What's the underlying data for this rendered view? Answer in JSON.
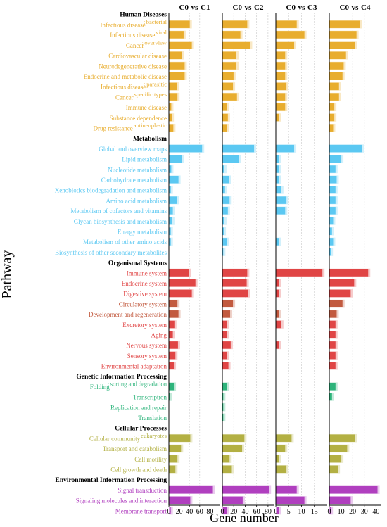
{
  "chart_data": {
    "type": "bar",
    "orientation": "horizontal",
    "ylabel": "Pathway",
    "xlabel": "Gene number",
    "grid": true,
    "colors": {
      "Human Diseases": "#e8ad2e",
      "Metabolism": "#5bc8f2",
      "Organismal Systems": "#e04545",
      "Organismal Systems (dark)": "#c25a3f",
      "Genetic Information Processing": "#2db47b",
      "Cellular Processes": "#b3b043",
      "Environmental Information Processing": "#b03fbf"
    },
    "panels": [
      {
        "title": "C0-vs-C1",
        "xlim": [
          0,
          100
        ],
        "ticks": [
          0,
          20,
          40,
          60,
          80
        ]
      },
      {
        "title": "C0-vs-C2",
        "xlim": [
          0,
          90
        ],
        "ticks": [
          0,
          20,
          40,
          60,
          80
        ]
      },
      {
        "title": "C0-vs-C3",
        "xlim": [
          0,
          20
        ],
        "ticks": [
          0,
          5,
          10,
          15
        ]
      },
      {
        "title": "C0-vs-C4",
        "xlim": [
          0,
          44
        ],
        "ticks": [
          0,
          10,
          20,
          30,
          40
        ]
      }
    ],
    "rows": [
      {
        "kind": "group",
        "label": "Human Diseases"
      },
      {
        "kind": "bar",
        "label": "Infectious disease",
        "sup": "bacterial",
        "cat": "Human Diseases",
        "values": [
          40,
          43,
          8,
          26
        ]
      },
      {
        "kind": "bar",
        "label": "Infectious disease",
        "sup": "viral",
        "cat": "Human Diseases",
        "values": [
          28,
          31,
          11,
          23
        ]
      },
      {
        "kind": "bar",
        "label": "Cancer",
        "sup": "overview",
        "cat": "Human Diseases",
        "values": [
          44,
          48,
          7,
          22
        ]
      },
      {
        "kind": "bar",
        "label": "Cardiovascular disease",
        "cat": "Human Diseases",
        "values": [
          25,
          24,
          3.5,
          14
        ]
      },
      {
        "kind": "bar",
        "label": "Neurodegenerative disease",
        "cat": "Human Diseases",
        "values": [
          30,
          24,
          3.5,
          12
        ]
      },
      {
        "kind": "bar",
        "label": "Endocrine and metabolic disease",
        "cat": "Human Diseases",
        "values": [
          30,
          19,
          3.5,
          11
        ]
      },
      {
        "kind": "bar",
        "label": "Infectious disease",
        "sup": "parasitic",
        "cat": "Human Diseases",
        "values": [
          15,
          18,
          4,
          8
        ]
      },
      {
        "kind": "bar",
        "label": "Cancer",
        "sup": "specific types",
        "cat": "Human Diseases",
        "values": [
          16,
          25,
          3.5,
          8
        ]
      },
      {
        "kind": "bar",
        "label": "Immune disease",
        "cat": "Human Diseases",
        "values": [
          4,
          7,
          3.5,
          4
        ]
      },
      {
        "kind": "bar",
        "label": "Substance dependence",
        "cat": "Human Diseases",
        "values": [
          5,
          9,
          1,
          4
        ]
      },
      {
        "kind": "bar",
        "label": "Drug resistance",
        "sup": "antineoplastic",
        "cat": "Human Diseases",
        "values": [
          8,
          7,
          0,
          3
        ]
      },
      {
        "kind": "group",
        "label": "Metabolism"
      },
      {
        "kind": "bar",
        "label": "Global and overview maps",
        "cat": "Metabolism",
        "values": [
          64,
          55,
          7,
          28
        ]
      },
      {
        "kind": "bar",
        "label": "Lipid metabolism",
        "cat": "Metabolism",
        "values": [
          24,
          28,
          1,
          10
        ]
      },
      {
        "kind": "bar",
        "label": "Nucleotide metabolism",
        "cat": "Metabolism",
        "values": [
          4,
          3,
          1,
          5
        ]
      },
      {
        "kind": "bar",
        "label": "Carbohydrate metabolism",
        "cat": "Metabolism",
        "values": [
          18,
          11,
          1,
          6
        ]
      },
      {
        "kind": "bar",
        "label": "Xenobiotics biodegradation and metabolism",
        "cat": "Metabolism",
        "values": [
          3,
          4,
          2,
          5
        ]
      },
      {
        "kind": "bar",
        "label": "Amino acid metabolism",
        "cat": "Metabolism",
        "values": [
          15,
          12,
          4,
          5
        ]
      },
      {
        "kind": "bar",
        "label": "Metabolism of cofactors and vitamins",
        "cat": "Metabolism",
        "values": [
          7,
          9,
          3.5,
          5
        ]
      },
      {
        "kind": "bar",
        "label": "Glycan biosynthesis and metabolism",
        "cat": "Metabolism",
        "values": [
          6,
          3,
          0,
          3
        ]
      },
      {
        "kind": "bar",
        "label": "Energy metabolism",
        "cat": "Metabolism",
        "values": [
          3,
          2,
          0,
          2
        ]
      },
      {
        "kind": "bar",
        "label": "Metabolism of other amino acids",
        "cat": "Metabolism",
        "values": [
          3,
          7,
          1,
          3
        ]
      },
      {
        "kind": "bar",
        "label": "Biosynthesis of other secondary metabolites",
        "cat": "Metabolism",
        "values": [
          0,
          1,
          0,
          1
        ]
      },
      {
        "kind": "group",
        "label": "Organismal Systems"
      },
      {
        "kind": "bar",
        "label": "Immune system",
        "cat": "Organismal Systems",
        "values": [
          38,
          43,
          18,
          33
        ]
      },
      {
        "kind": "bar",
        "label": "Endocrine system",
        "cat": "Organismal Systems",
        "values": [
          51,
          42,
          1,
          21
        ]
      },
      {
        "kind": "bar",
        "label": "Digestive system",
        "cat": "Organismal Systems",
        "values": [
          44,
          44,
          1,
          18
        ]
      },
      {
        "kind": "bar",
        "label": "Circulatory system",
        "cat": "Organismal Systems (dark)",
        "values": [
          16,
          18,
          0,
          11
        ]
      },
      {
        "kind": "bar",
        "label": "Development and regeneration",
        "cat": "Organismal Systems (dark)",
        "values": [
          18,
          13,
          1,
          6
        ]
      },
      {
        "kind": "bar",
        "label": "Excretory system",
        "cat": "Organismal Systems",
        "values": [
          10,
          7,
          2,
          5
        ]
      },
      {
        "kind": "bar",
        "label": "Aging",
        "cat": "Organismal Systems",
        "values": [
          7,
          7,
          0,
          5
        ]
      },
      {
        "kind": "bar",
        "label": "Nervous system",
        "cat": "Organismal Systems",
        "values": [
          17,
          14,
          1,
          5
        ]
      },
      {
        "kind": "bar",
        "label": "Sensory system",
        "cat": "Organismal Systems",
        "values": [
          12,
          7,
          0,
          5
        ]
      },
      {
        "kind": "bar",
        "label": "Environmental adaptation",
        "cat": "Organismal Systems",
        "values": [
          9,
          10,
          0,
          5
        ]
      },
      {
        "kind": "group",
        "label": "Genetic Information Processing"
      },
      {
        "kind": "bar",
        "label": "Folding",
        "sup": "sorting and degradation",
        "cat": "Genetic Information Processing",
        "values": [
          9,
          7,
          0,
          5
        ]
      },
      {
        "kind": "bar",
        "label": "Transcription",
        "cat": "Genetic Information Processing",
        "values": [
          2,
          1,
          0,
          2
        ]
      },
      {
        "kind": "bar",
        "label": "Replication and repair",
        "cat": "Genetic Information Processing",
        "values": [
          0,
          1,
          0,
          0
        ]
      },
      {
        "kind": "bar",
        "label": "Translation",
        "cat": "Genetic Information Processing",
        "values": [
          0,
          1,
          0,
          0
        ]
      },
      {
        "kind": "group",
        "label": "Cellular Processes"
      },
      {
        "kind": "bar",
        "label": "Cellular community",
        "sup": "eukaryotes",
        "cat": "Cellular Processes",
        "values": [
          41,
          38,
          6,
          22
        ]
      },
      {
        "kind": "bar",
        "label": "Transport and catabolism",
        "cat": "Cellular Processes",
        "values": [
          23,
          34,
          3.5,
          15
        ]
      },
      {
        "kind": "bar",
        "label": "Cell motility",
        "cat": "Cellular Processes",
        "values": [
          16,
          12,
          1,
          10
        ]
      },
      {
        "kind": "bar",
        "label": "Cell growth and death",
        "cat": "Cellular Processes",
        "values": [
          12,
          16,
          4,
          7
        ]
      },
      {
        "kind": "group",
        "label": "Environmental Information Processing"
      },
      {
        "kind": "bar",
        "label": "Signal transduction",
        "cat": "Environmental Information Processing",
        "values": [
          85,
          81,
          8,
          41
        ]
      },
      {
        "kind": "bar",
        "label": "Signaling molecules and interaction",
        "cat": "Environmental Information Processing",
        "values": [
          41,
          35,
          11,
          18
        ]
      },
      {
        "kind": "bar",
        "label": "Membrane transport",
        "cat": "Environmental Information Processing",
        "values": [
          3,
          8,
          1,
          1
        ]
      }
    ]
  }
}
